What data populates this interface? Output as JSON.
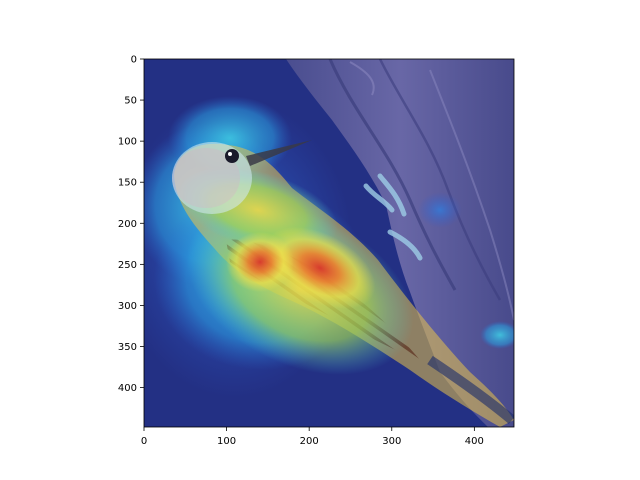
{
  "figure": {
    "image": {
      "subject": "woodpecker-on-tree-bark",
      "overlay": "jet-colormap-attention-heatmap",
      "colors": {
        "background_low": "#1d2a7a",
        "bark": "#5a5a9a",
        "mid": "#33c3e6",
        "high_yellow": "#f4e04a",
        "peak_red": "#d9342b"
      }
    },
    "axes": {
      "x": {
        "range": [
          0,
          448
        ],
        "ticks": [
          {
            "value": 0,
            "label": "0"
          },
          {
            "value": 100,
            "label": "100"
          },
          {
            "value": 200,
            "label": "200"
          },
          {
            "value": 300,
            "label": "300"
          },
          {
            "value": 400,
            "label": "400"
          }
        ]
      },
      "y": {
        "range": [
          0,
          448
        ],
        "inverted": true,
        "ticks": [
          {
            "value": 0,
            "label": "0"
          },
          {
            "value": 50,
            "label": "50"
          },
          {
            "value": 100,
            "label": "100"
          },
          {
            "value": 150,
            "label": "150"
          },
          {
            "value": 200,
            "label": "200"
          },
          {
            "value": 250,
            "label": "250"
          },
          {
            "value": 300,
            "label": "300"
          },
          {
            "value": 350,
            "label": "350"
          },
          {
            "value": 400,
            "label": "400"
          }
        ]
      }
    }
  }
}
